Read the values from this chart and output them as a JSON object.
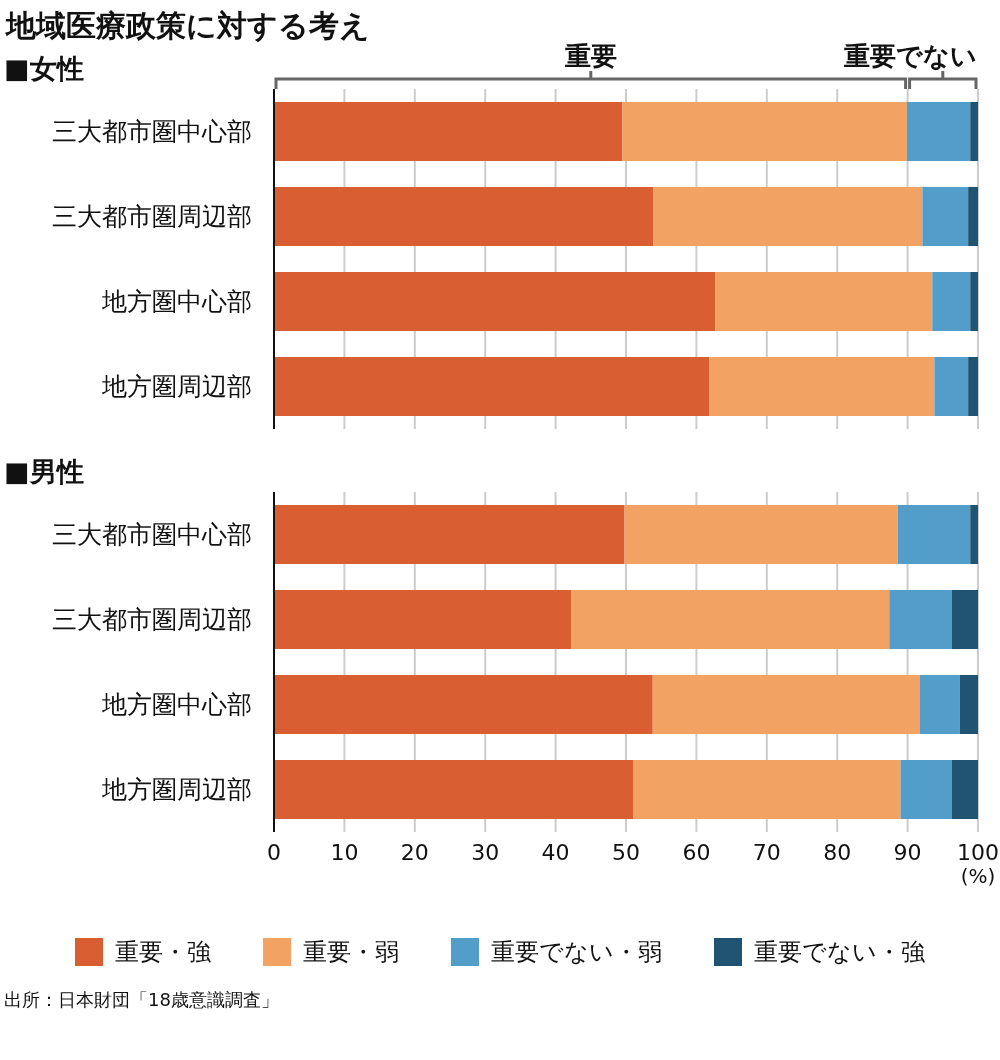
{
  "chart_data": [
    {
      "type": "bar",
      "orientation": "horizontal",
      "stacked": true,
      "title": "地域医療政策に対する考え",
      "subtitle": "■女性",
      "categories": [
        "三大都市圏中心部",
        "三大都市圏周辺部",
        "地方圏中心部",
        "地方圏周辺部"
      ],
      "series": [
        {
          "color": "#d95f33",
          "values": [
            49.5,
            53.9,
            62.7,
            61.8
          ]
        },
        {
          "color": "#f2a262",
          "values": [
            40.4,
            38.2,
            30.8,
            32.0
          ]
        },
        {
          "color": "#529dca",
          "values": [
            9.0,
            6.5,
            5.4,
            4.8
          ]
        },
        {
          "color": "#215473",
          "values": [
            1.1,
            1.4,
            1.1,
            1.4
          ]
        }
      ],
      "annotations": [
        "重要",
        "重要でない"
      ],
      "xlim": [
        0,
        100
      ],
      "xticks": [
        0,
        10,
        20,
        30,
        40,
        50,
        60,
        70,
        80,
        90,
        100
      ],
      "grid": "x",
      "tick_labels": "y"
    },
    {
      "type": "bar",
      "orientation": "horizontal",
      "stacked": true,
      "subtitle": "■男性",
      "xlabel": "(%)",
      "categories": [
        "三大都市圏中心部",
        "三大都市圏周辺部",
        "地方圏中心部",
        "地方圏周辺部"
      ],
      "series": [
        {
          "name": "重要・強",
          "color": "#d95f33",
          "values": [
            49.8,
            42.2,
            53.8,
            51.0
          ]
        },
        {
          "name": "重要・弱",
          "color": "#f2a262",
          "values": [
            38.8,
            45.2,
            37.9,
            38.0
          ]
        },
        {
          "name": "重要でない・弱",
          "color": "#529dca",
          "values": [
            10.3,
            8.9,
            5.7,
            7.3
          ]
        },
        {
          "name": "重要でない・強",
          "color": "#215473",
          "values": [
            1.1,
            3.7,
            2.6,
            3.7
          ]
        }
      ],
      "xlim": [
        0,
        100
      ],
      "xticks": [
        0,
        10,
        20,
        30,
        40,
        50,
        60,
        70,
        80,
        90,
        100
      ],
      "grid": "x",
      "legend": "bottom",
      "annotations": [
        "出所：日本財団「18歳意識調査」"
      ]
    }
  ]
}
